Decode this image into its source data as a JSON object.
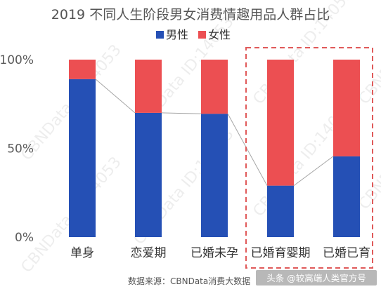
{
  "chart_data": {
    "type": "bar",
    "stacked": true,
    "title": "2019 不同人生阶段男女消费情趣用品人群占比",
    "categories": [
      "单身",
      "恋爱期",
      "已婚未孕",
      "已婚育婴期",
      "已婚已育"
    ],
    "series": [
      {
        "name": "男性",
        "color": "#2550b5",
        "values": [
          89,
          70,
          69.5,
          29,
          45.5
        ]
      },
      {
        "name": "女性",
        "color": "#ec4f52",
        "values": [
          11,
          30,
          30.5,
          71,
          54.5
        ]
      }
    ],
    "yticks": [
      "0%",
      "50%",
      "100%"
    ],
    "ylim": [
      0,
      100
    ],
    "legend": "top",
    "grid": false,
    "connector_lines": true,
    "highlight": {
      "categories": [
        "已婚育婴期",
        "已婚已育"
      ],
      "color": "#e05a5a",
      "style": "dashed"
    },
    "watermark": "CBNData ID:14053"
  },
  "footer": {
    "source": "数据来源：CBNData消费大数据",
    "credit": "头条 @较高端人类官方号"
  }
}
